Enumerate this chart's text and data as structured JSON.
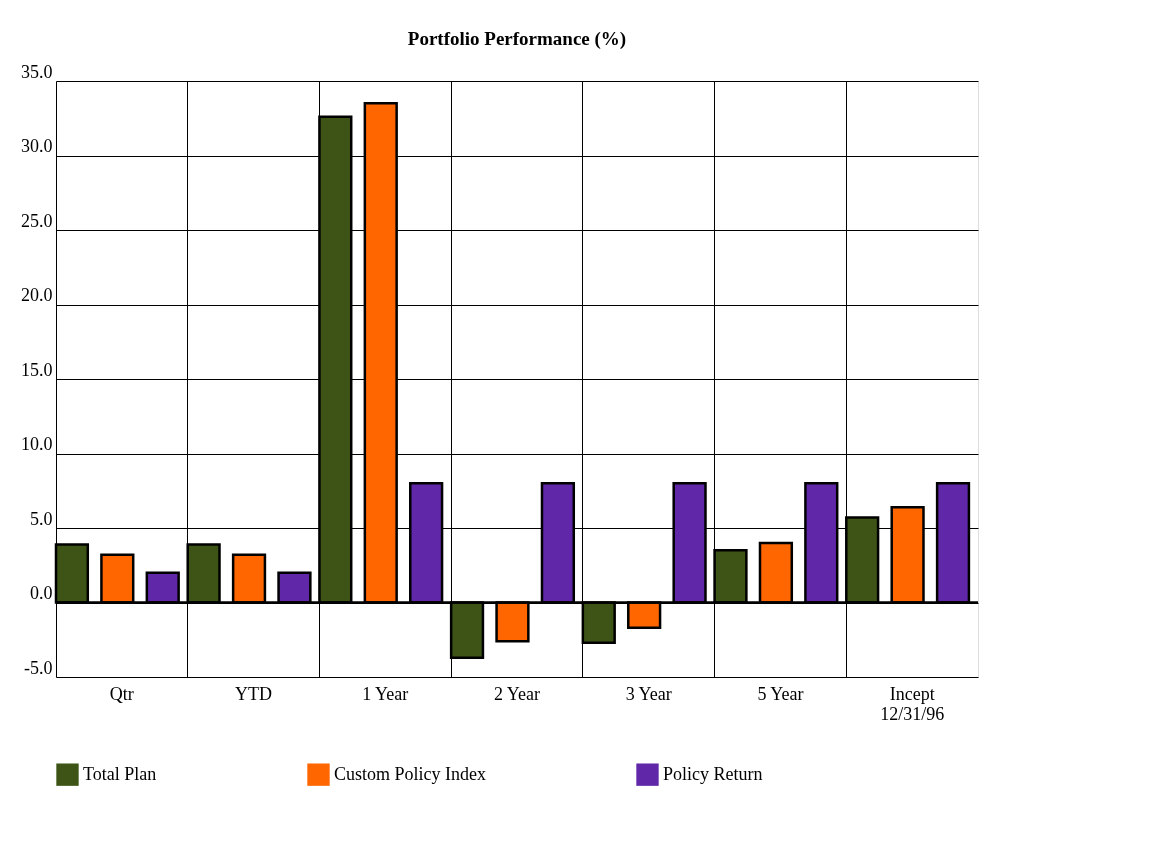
{
  "chart_data": {
    "type": "bar",
    "title": "Portfolio Performance (%)",
    "categories": [
      "Qtr",
      "YTD",
      "1 Year",
      "2 Year",
      "3 Year",
      "5 Year",
      "Incept\n12/31/96"
    ],
    "series": [
      {
        "name": "Total Plan",
        "color": "#3d5416",
        "values": [
          3.9,
          3.9,
          32.6,
          -3.7,
          -2.7,
          3.5,
          5.7
        ]
      },
      {
        "name": "Custom Policy Index",
        "color": "#ff6600",
        "values": [
          3.2,
          3.2,
          33.5,
          -2.6,
          -1.7,
          4.0,
          6.4
        ]
      },
      {
        "name": "Policy Return",
        "color": "#6028a8",
        "values": [
          2.0,
          2.0,
          8.0,
          8.0,
          8.0,
          8.0,
          8.0
        ]
      }
    ],
    "ylim": [
      -5,
      35
    ],
    "yticks": [
      {
        "value": -5,
        "label": "-5.0"
      },
      {
        "value": 0,
        "label": "0.0"
      },
      {
        "value": 5,
        "label": "5.0"
      },
      {
        "value": 10,
        "label": "10.0"
      },
      {
        "value": 15,
        "label": "15.0"
      },
      {
        "value": 20,
        "label": "20.0"
      },
      {
        "value": 25,
        "label": "25.0"
      },
      {
        "value": 30,
        "label": "30.0"
      },
      {
        "value": 35,
        "label": "35.0"
      }
    ],
    "grid": true,
    "legend": "bottom"
  }
}
